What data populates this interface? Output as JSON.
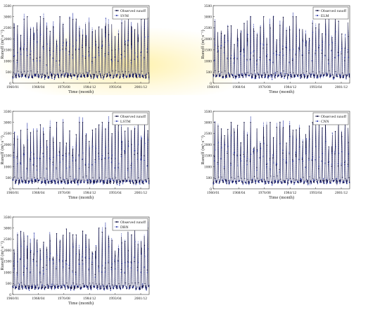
{
  "panels": [
    {
      "id": "svm",
      "legend": [
        "Observed runoff",
        "SVM"
      ],
      "seed": 11
    },
    {
      "id": "elm",
      "legend": [
        "Observed runoff",
        "ELM"
      ],
      "seed": 23
    },
    {
      "id": "lstm",
      "legend": [
        "Observed runoff",
        "LSTM"
      ],
      "seed": 37
    },
    {
      "id": "cnn",
      "legend": [
        "Observed runoff",
        "CNN"
      ],
      "seed": 41
    },
    {
      "id": "dbn",
      "legend": [
        "Observed runoff",
        "DBN"
      ],
      "seed": 53
    }
  ],
  "axes": {
    "ylabel": "Runoff (m³·s⁻¹)",
    "xlabel": "Time (month)",
    "yticks": [
      0,
      500,
      1000,
      1500,
      2000,
      2500,
      3000,
      3500
    ],
    "xticks": [
      "1960/01",
      "1968/04",
      "1976/08",
      "1984/12",
      "1993/04",
      "2001/12"
    ],
    "ylim": [
      0,
      3500
    ]
  },
  "colors": {
    "observed": "#0a0a3c",
    "predicted": "#1f2ea8",
    "accent": "#2c3aa8"
  },
  "chart_data": [
    {
      "type": "line",
      "title": "",
      "xlabel": "Time (month)",
      "ylabel": "Runoff (m³·s⁻¹)",
      "ylim": [
        0,
        3500
      ],
      "x_range": [
        "1960/01",
        "2001/12"
      ],
      "series": [
        {
          "name": "Observed runoff",
          "values": [
            320,
            1850,
            260,
            2300,
            410,
            1500,
            290,
            2050,
            380,
            2600,
            240,
            1700
          ]
        },
        {
          "name": "SVM",
          "values": [
            350,
            1600,
            300,
            2000,
            420,
            1400,
            320,
            1850,
            400,
            2200,
            280,
            1500
          ]
        }
      ],
      "legend": "top-right",
      "grid": false
    },
    {
      "type": "line",
      "title": "",
      "xlabel": "Time (month)",
      "ylabel": "Runoff (m³·s⁻¹)",
      "ylim": [
        0,
        3500
      ],
      "x_range": [
        "1960/01",
        "2001/12"
      ],
      "series": [
        {
          "name": "Observed runoff",
          "values": [
            320,
            1850,
            260,
            2300,
            410,
            1500,
            290,
            2050,
            380,
            2600,
            240,
            1700
          ]
        },
        {
          "name": "ELM",
          "values": [
            340,
            1700,
            290,
            2100,
            400,
            1450,
            310,
            1900,
            390,
            2300,
            270,
            1600
          ]
        }
      ],
      "legend": "top-right",
      "grid": false
    },
    {
      "type": "line",
      "title": "",
      "xlabel": "Time (month)",
      "ylabel": "Runoff (m³·s⁻¹)",
      "ylim": [
        0,
        3500
      ],
      "x_range": [
        "1960/01",
        "2001/12"
      ],
      "series": [
        {
          "name": "Observed runoff",
          "values": [
            320,
            1850,
            260,
            2300,
            410,
            1500,
            290,
            2050,
            380,
            2600,
            240,
            1700
          ]
        },
        {
          "name": "LSTM",
          "values": [
            330,
            1800,
            270,
            2250,
            410,
            1480,
            300,
            2000,
            380,
            2500,
            250,
            1650
          ]
        }
      ],
      "legend": "top-right",
      "grid": false
    },
    {
      "type": "line",
      "title": "",
      "xlabel": "Time (month)",
      "ylabel": "Runoff (m³·s⁻¹)",
      "ylim": [
        0,
        3500
      ],
      "x_range": [
        "1960/01",
        "2001/12"
      ],
      "series": [
        {
          "name": "Observed runoff",
          "values": [
            320,
            1850,
            260,
            2300,
            410,
            1500,
            290,
            2050,
            380,
            2600,
            240,
            1700
          ]
        },
        {
          "name": "CNN",
          "values": [
            330,
            1780,
            275,
            2200,
            405,
            1470,
            300,
            1980,
            385,
            2450,
            255,
            1640
          ]
        }
      ],
      "legend": "top-right",
      "grid": false
    },
    {
      "type": "line",
      "title": "",
      "xlabel": "Time (month)",
      "ylabel": "Runoff (m³·s⁻¹)",
      "ylim": [
        0,
        3500
      ],
      "x_range": [
        "1960/01",
        "2001/12"
      ],
      "series": [
        {
          "name": "Observed runoff",
          "values": [
            320,
            1850,
            260,
            2300,
            410,
            1500,
            290,
            2050,
            380,
            2600,
            240,
            1700
          ]
        },
        {
          "name": "DBN",
          "values": [
            325,
            1820,
            265,
            2270,
            408,
            1490,
            295,
            2020,
            382,
            2550,
            248,
            1680
          ]
        }
      ],
      "legend": "top-right",
      "grid": false
    }
  ]
}
